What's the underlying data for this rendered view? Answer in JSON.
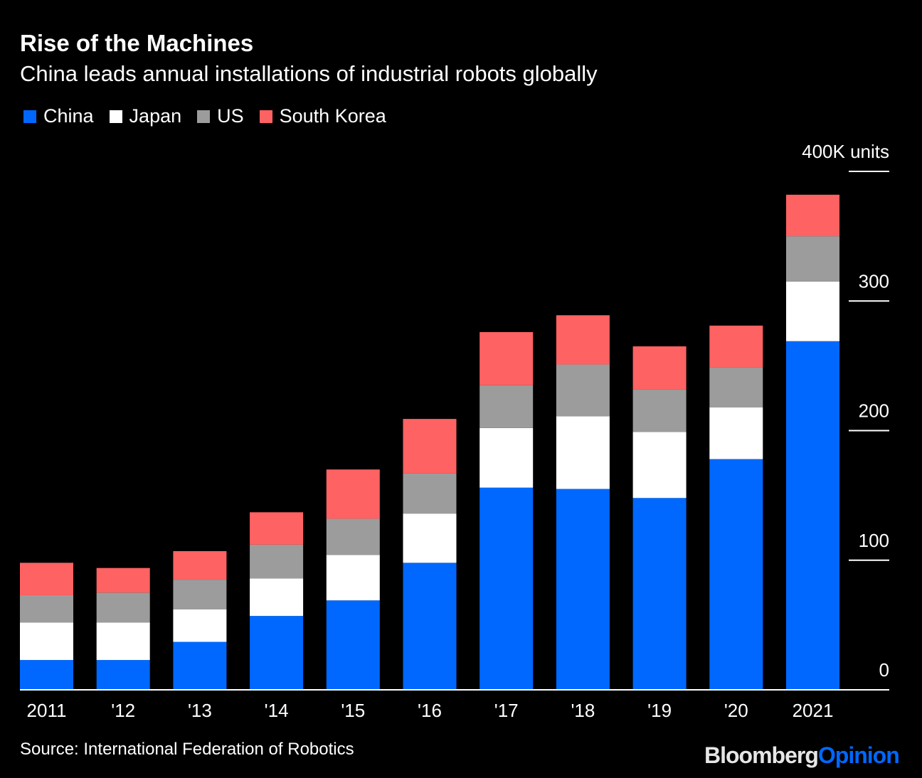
{
  "chart_data": {
    "type": "bar",
    "stacked": true,
    "title": "Rise of the Machines",
    "subtitle": "China leads annual installations of industrial robots globally",
    "categories": [
      "2011",
      "'12",
      "'13",
      "'14",
      "'15",
      "'16",
      "'17",
      "'18",
      "'19",
      "'20",
      "2021"
    ],
    "series": [
      {
        "name": "China",
        "color": "#0068ff",
        "values": [
          23,
          23,
          37,
          57,
          69,
          98,
          156,
          155,
          148,
          178,
          269
        ]
      },
      {
        "name": "Japan",
        "color": "#ffffff",
        "values": [
          29,
          29,
          25,
          29,
          35,
          38,
          46,
          56,
          51,
          40,
          46
        ]
      },
      {
        "name": "US",
        "color": "#9c9c9c",
        "values": [
          21,
          23,
          23,
          26,
          28,
          31,
          33,
          40,
          33,
          31,
          35
        ]
      },
      {
        "name": "South Korea",
        "color": "#ff6262",
        "values": [
          25,
          19,
          22,
          25,
          38,
          42,
          41,
          38,
          33,
          32,
          32
        ]
      }
    ],
    "ylim": [
      0,
      400
    ],
    "yticks": [
      0,
      100,
      200,
      300,
      400
    ],
    "ytick_labels": [
      "0",
      "100",
      "200",
      "300",
      "400K units"
    ],
    "y_axis_position": "right",
    "grid": false,
    "legend": "top-left",
    "source": "Source: International Federation of Robotics"
  },
  "branding": {
    "logo_part1": "Bloomberg",
    "logo_part2": "Opinion",
    "logo_color1": "#e6e6e6",
    "logo_color2": "#0068ff"
  }
}
